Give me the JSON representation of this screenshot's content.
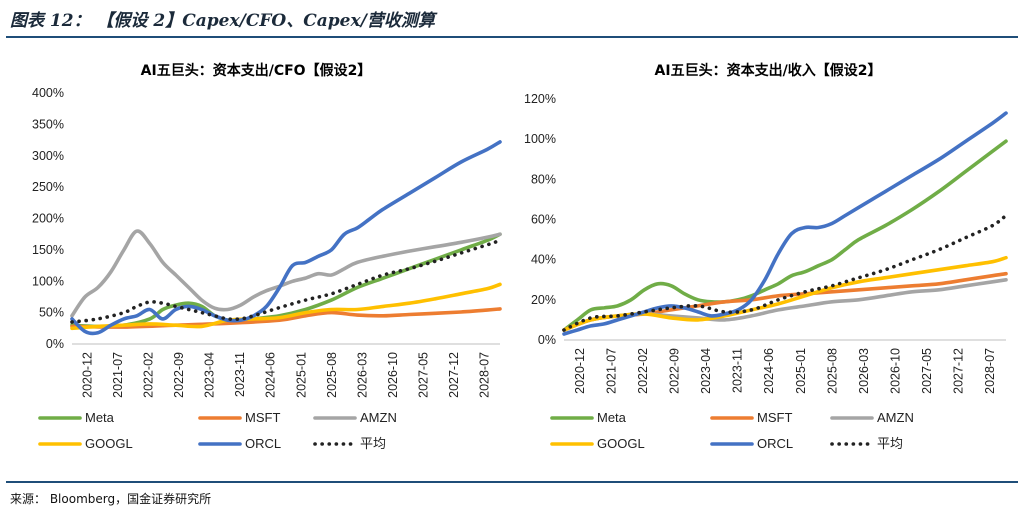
{
  "figure": {
    "title": "图表 12：  【假设 2】Capex/CFO、Capex/营收测算",
    "source": "来源：  Bloomberg，国金证券研究所"
  },
  "legend": {
    "series": [
      {
        "name": "Meta",
        "color": "#70ad47",
        "style": "solid"
      },
      {
        "name": "MSFT",
        "color": "#ed7d31",
        "style": "solid"
      },
      {
        "name": "AMZN",
        "color": "#a5a5a5",
        "style": "solid"
      },
      {
        "name": "GOOGL",
        "color": "#ffc000",
        "style": "solid"
      },
      {
        "name": "ORCL",
        "color": "#4472c4",
        "style": "solid"
      },
      {
        "name": "平均",
        "color": "#222222",
        "style": "dotted"
      }
    ]
  },
  "chart_data": [
    {
      "type": "line",
      "title": "AI五巨头：资本支出/CFO【假设2】",
      "xlabel": "",
      "ylabel": "",
      "x_ticks": [
        "2020-12",
        "2021-07",
        "2022-02",
        "2022-09",
        "2023-04",
        "2023-11",
        "2024-06",
        "2025-01",
        "2025-08",
        "2026-03",
        "2026-10",
        "2027-05",
        "2027-12",
        "2028-07"
      ],
      "y_ticks": [
        "0%",
        "50%",
        "100%",
        "150%",
        "200%",
        "250%",
        "300%",
        "350%",
        "400%"
      ],
      "ylim": [
        0,
        400
      ],
      "x_range": [
        0,
        33
      ],
      "grid": false,
      "legend_position": "bottom",
      "series": [
        {
          "name": "Meta",
          "x": [
            0,
            2,
            4,
            6,
            7,
            8,
            9,
            10,
            11,
            12,
            13,
            14,
            16,
            18,
            20,
            22,
            24,
            26,
            28,
            30,
            32,
            33
          ],
          "values": [
            30,
            28,
            30,
            40,
            55,
            62,
            65,
            60,
            45,
            38,
            35,
            40,
            45,
            55,
            70,
            90,
            105,
            120,
            135,
            150,
            165,
            175
          ]
        },
        {
          "name": "MSFT",
          "x": [
            0,
            4,
            8,
            12,
            16,
            18,
            20,
            22,
            24,
            26,
            28,
            30,
            32,
            33
          ],
          "values": [
            28,
            27,
            30,
            33,
            38,
            45,
            50,
            46,
            45,
            47,
            49,
            51,
            54,
            56
          ]
        },
        {
          "name": "AMZN",
          "x": [
            0,
            1,
            2,
            3,
            4,
            5,
            6,
            7,
            8,
            9,
            10,
            11,
            12,
            13,
            14,
            15,
            16,
            17,
            18,
            19,
            20,
            21,
            22,
            24,
            26,
            28,
            30,
            32,
            33
          ],
          "values": [
            45,
            75,
            90,
            115,
            150,
            180,
            160,
            130,
            110,
            90,
            70,
            57,
            55,
            62,
            75,
            85,
            92,
            100,
            105,
            112,
            110,
            120,
            130,
            140,
            148,
            155,
            162,
            170,
            175
          ]
        },
        {
          "name": "GOOGL",
          "x": [
            0,
            2,
            4,
            6,
            8,
            10,
            12,
            14,
            16,
            18,
            20,
            22,
            24,
            26,
            28,
            30,
            32,
            33
          ],
          "values": [
            25,
            28,
            30,
            32,
            30,
            28,
            38,
            40,
            42,
            50,
            55,
            55,
            60,
            65,
            72,
            80,
            88,
            95
          ]
        },
        {
          "name": "ORCL",
          "x": [
            0,
            1,
            2,
            3,
            4,
            5,
            6,
            7,
            8,
            9,
            10,
            11,
            12,
            13,
            14,
            15,
            16,
            17,
            18,
            19,
            20,
            21,
            22,
            23,
            24,
            26,
            28,
            30,
            32,
            33
          ],
          "values": [
            40,
            20,
            18,
            30,
            40,
            45,
            55,
            40,
            55,
            60,
            55,
            45,
            38,
            38,
            45,
            60,
            90,
            125,
            130,
            140,
            150,
            175,
            185,
            200,
            215,
            240,
            265,
            290,
            310,
            322
          ]
        },
        {
          "name": "平均",
          "x": [
            0,
            2,
            4,
            5,
            6,
            7,
            8,
            9,
            10,
            11,
            12,
            13,
            14,
            16,
            18,
            20,
            22,
            24,
            26,
            28,
            30,
            32,
            33
          ],
          "values": [
            35,
            40,
            50,
            60,
            67,
            65,
            60,
            55,
            50,
            45,
            40,
            40,
            45,
            58,
            70,
            80,
            95,
            110,
            120,
            132,
            145,
            158,
            165
          ]
        }
      ]
    },
    {
      "type": "line",
      "title": "AI五巨头：资本支出/收入【假设2】",
      "xlabel": "",
      "ylabel": "",
      "x_ticks": [
        "2020-12",
        "2021-07",
        "2022-02",
        "2022-09",
        "2023-04",
        "2023-11",
        "2024-06",
        "2025-01",
        "2025-08",
        "2026-03",
        "2026-10",
        "2027-05",
        "2027-12",
        "2028-07"
      ],
      "y_ticks": [
        "0%",
        "20%",
        "40%",
        "60%",
        "80%",
        "100%",
        "120%"
      ],
      "ylim": [
        0,
        120
      ],
      "x_range": [
        0,
        33
      ],
      "grid": false,
      "legend_position": "bottom",
      "series": [
        {
          "name": "Meta",
          "x": [
            0,
            1,
            2,
            3,
            4,
            5,
            6,
            7,
            8,
            9,
            10,
            11,
            12,
            13,
            14,
            15,
            16,
            17,
            18,
            19,
            20,
            21,
            22,
            24,
            26,
            28,
            30,
            32,
            33
          ],
          "values": [
            5,
            10,
            15,
            16,
            17,
            20,
            25,
            28,
            27,
            23,
            20,
            19,
            19,
            20,
            22,
            25,
            28,
            32,
            34,
            37,
            40,
            45,
            50,
            57,
            65,
            74,
            84,
            94,
            99
          ]
        },
        {
          "name": "MSFT",
          "x": [
            0,
            2,
            4,
            6,
            8,
            10,
            12,
            14,
            16,
            18,
            20,
            22,
            24,
            26,
            28,
            30,
            32,
            33
          ],
          "values": [
            5,
            10,
            12,
            13,
            15,
            17,
            19,
            20,
            22,
            23,
            24,
            25,
            26,
            27,
            28,
            30,
            32,
            33
          ]
        },
        {
          "name": "AMZN",
          "x": [
            0,
            2,
            4,
            6,
            8,
            10,
            12,
            14,
            16,
            18,
            20,
            22,
            24,
            26,
            28,
            30,
            32,
            33
          ],
          "values": [
            5,
            10,
            12,
            13,
            12,
            11,
            10,
            12,
            15,
            17,
            19,
            20,
            22,
            24,
            25,
            27,
            29,
            30
          ]
        },
        {
          "name": "GOOGL",
          "x": [
            0,
            2,
            4,
            6,
            8,
            10,
            12,
            14,
            16,
            18,
            20,
            22,
            24,
            26,
            28,
            30,
            32,
            33
          ],
          "values": [
            5,
            10,
            12,
            13,
            11,
            10,
            12,
            15,
            18,
            22,
            26,
            29,
            31,
            33,
            35,
            37,
            39,
            41
          ]
        },
        {
          "name": "ORCL",
          "x": [
            0,
            1,
            2,
            3,
            4,
            5,
            6,
            7,
            8,
            9,
            10,
            11,
            12,
            13,
            14,
            15,
            16,
            17,
            18,
            19,
            20,
            21,
            22,
            23,
            24,
            26,
            28,
            30,
            32,
            33
          ],
          "values": [
            3,
            5,
            7,
            8,
            10,
            12,
            14,
            16,
            17,
            16,
            14,
            12,
            13,
            15,
            20,
            30,
            43,
            53,
            56,
            56,
            58,
            62,
            66,
            70,
            74,
            82,
            90,
            99,
            108,
            113
          ]
        },
        {
          "name": "平均",
          "x": [
            0,
            2,
            4,
            6,
            8,
            10,
            12,
            14,
            16,
            18,
            20,
            22,
            24,
            26,
            28,
            30,
            32,
            33
          ],
          "values": [
            5,
            11,
            12,
            14,
            16,
            17,
            14,
            15,
            20,
            24,
            27,
            31,
            35,
            40,
            45,
            51,
            57,
            62
          ]
        }
      ]
    }
  ]
}
